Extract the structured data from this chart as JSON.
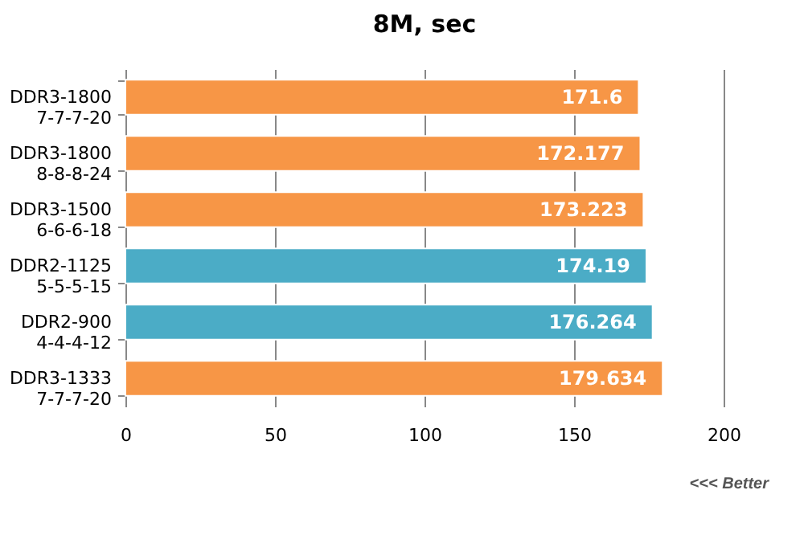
{
  "chart_data": {
    "type": "bar",
    "orientation": "horizontal",
    "title": "8M, sec",
    "categories": [
      "DDR3-1800\n7-7-7-20",
      "DDR3-1800\n8-8-8-24",
      "DDR3-1500\n6-6-6-18",
      "DDR2-1125\n5-5-5-15",
      "DDR2-900\n4-4-4-12",
      "DDR3-1333\n7-7-7-20"
    ],
    "values": [
      171.6,
      172.177,
      173.223,
      174.19,
      176.264,
      179.634
    ],
    "colors": [
      "#f79646",
      "#f79646",
      "#f79646",
      "#4bacc6",
      "#4bacc6",
      "#f79646"
    ],
    "xlim": [
      0,
      200
    ],
    "xticks": [
      0,
      50,
      100,
      150,
      200
    ],
    "grid": "x",
    "data_labels": true,
    "annotations": [
      "<<< Better"
    ]
  }
}
